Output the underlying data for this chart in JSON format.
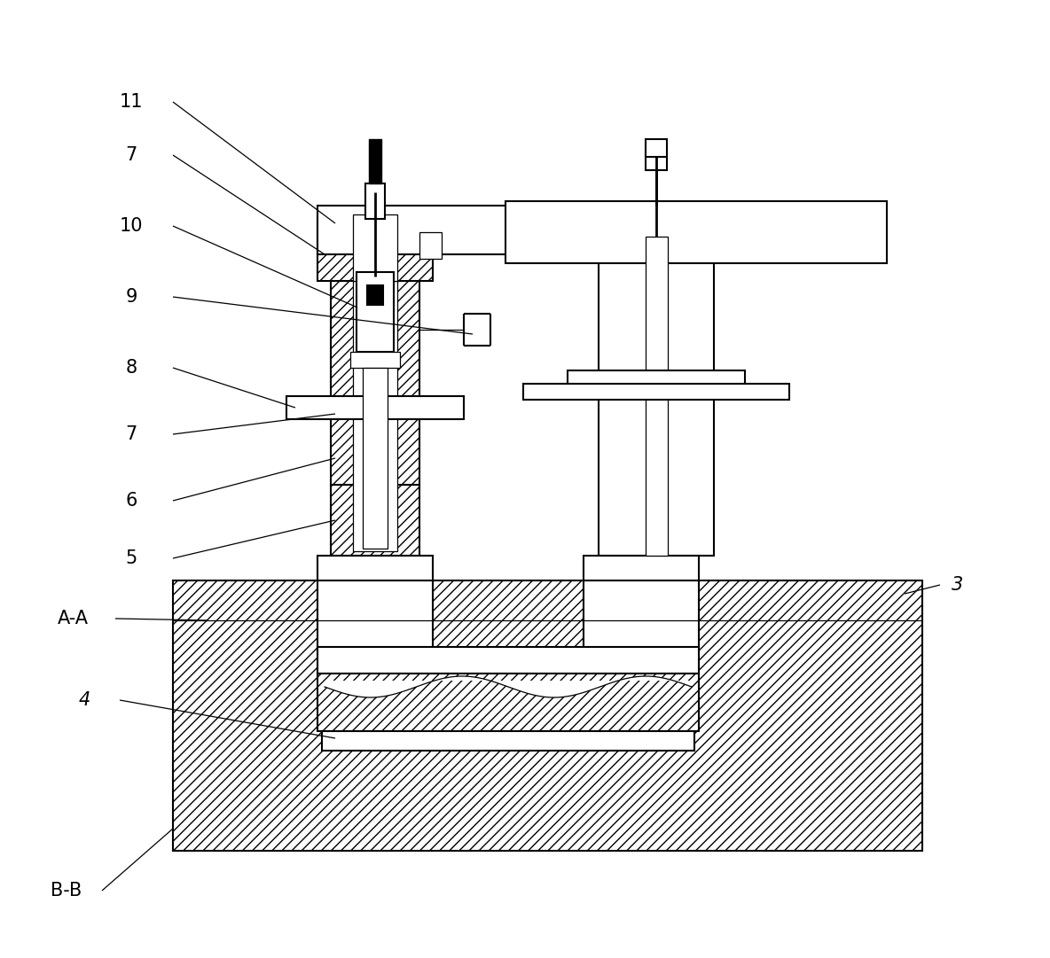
{
  "bg_color": "#ffffff",
  "lw": 1.5,
  "lw_thin": 0.9,
  "lw_label": 0.9,
  "hatch": "///",
  "label_fs": 15,
  "fig_w": 11.84,
  "fig_h": 10.81,
  "dpi": 100
}
